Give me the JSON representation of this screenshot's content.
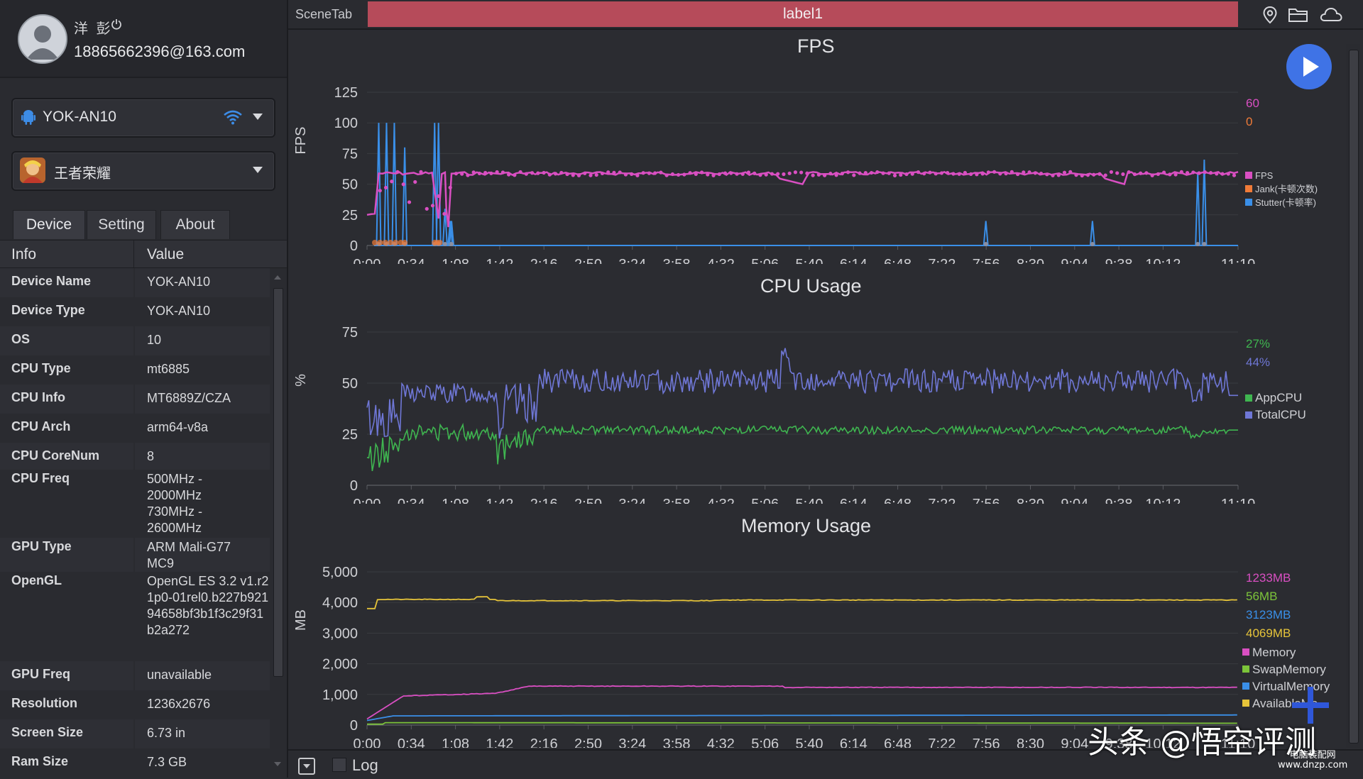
{
  "user": {
    "name": "洋 彭",
    "email": "18865662396@163.com"
  },
  "device_select": {
    "label": "YOK-AN10"
  },
  "app_select": {
    "label": "王者荣耀"
  },
  "tabs": [
    "Device",
    "Setting",
    "About"
  ],
  "info_table": {
    "headers": [
      "Info",
      "Value"
    ],
    "rows": [
      {
        "k": "Device Name",
        "v": "YOK-AN10"
      },
      {
        "k": "Device Type",
        "v": "YOK-AN10"
      },
      {
        "k": "OS",
        "v": "10"
      },
      {
        "k": "CPU Type",
        "v": "mt6885"
      },
      {
        "k": "CPU Info",
        "v": "MT6889Z/CZA"
      },
      {
        "k": "CPU Arch",
        "v": "arm64-v8a"
      },
      {
        "k": "CPU CoreNum",
        "v": "8"
      },
      {
        "k": "CPU Freq",
        "v": "500MHz - 2000MHz 730MHz - 2600MHz"
      },
      {
        "k": "GPU Type",
        "v": "ARM Mali-G77 MC9"
      },
      {
        "k": "OpenGL",
        "v": "OpenGL ES 3.2 v1.r21p0-01rel0.b227b92194658bf3b1f3c29f31b2a272"
      },
      {
        "k": "GPU Freq",
        "v": "unavailable"
      },
      {
        "k": "Resolution",
        "v": "1236x2676"
      },
      {
        "k": "Screen Size",
        "v": "6.73 in"
      },
      {
        "k": "Ram Size",
        "v": "7.3 GB"
      }
    ]
  },
  "topbar": {
    "scene_tab": "SceneTab",
    "label": "label1",
    "icons": [
      "location-pin-icon",
      "folder-icon",
      "cloud-icon"
    ]
  },
  "bottombar": {
    "log_label": "Log"
  },
  "watermark": {
    "text": "头条 @悟空评测",
    "site_line1": "电脑装配网",
    "site_line2": "www.dnzp.com"
  },
  "colors": {
    "fps": "#d94fc2",
    "jank": "#f07b38",
    "stutter": "#3a8fe8",
    "appcpu": "#3fb650",
    "totalcpu": "#6f77d6",
    "memory": "#d94fc2",
    "swap": "#7cc43a",
    "virtual": "#3a8fe8",
    "available": "#e6c43a",
    "slider": "#2aa6ec"
  },
  "chart_data": [
    {
      "type": "line",
      "title": "FPS",
      "ylabel": "FPS",
      "ylim": [
        0,
        125
      ],
      "yticks": [
        0,
        25,
        50,
        75,
        100,
        125
      ],
      "xticks": [
        "0:00",
        "0:34",
        "1:08",
        "1:42",
        "2:16",
        "2:50",
        "3:24",
        "3:58",
        "4:32",
        "5:06",
        "5:40",
        "6:14",
        "6:48",
        "7:22",
        "7:56",
        "8:30",
        "9:04",
        "9:38",
        "10:12",
        "11:10"
      ],
      "series": [
        {
          "name": "FPS",
          "current": "60"
        },
        {
          "name": "Jank(卡顿次数)",
          "current": "0"
        },
        {
          "name": "Stutter(卡顿率)"
        }
      ],
      "fps_points": [
        [
          0,
          25
        ],
        [
          12,
          26
        ],
        [
          18,
          60
        ],
        [
          30,
          58
        ],
        [
          40,
          60
        ],
        [
          50,
          58
        ],
        [
          60,
          60
        ],
        [
          90,
          60
        ],
        [
          100,
          60
        ],
        [
          110,
          22
        ],
        [
          115,
          60
        ],
        [
          120,
          59
        ],
        [
          122,
          30
        ],
        [
          125,
          15
        ],
        [
          130,
          60
        ],
        [
          150,
          60
        ],
        [
          200,
          60
        ],
        [
          300,
          59
        ],
        [
          400,
          60
        ],
        [
          500,
          60
        ],
        [
          600,
          59
        ],
        [
          670,
          50
        ],
        [
          680,
          60
        ],
        [
          800,
          60
        ],
        [
          900,
          59
        ],
        [
          1000,
          60
        ],
        [
          1100,
          60
        ],
        [
          1165,
          50
        ],
        [
          1170,
          60
        ],
        [
          1200,
          60
        ],
        [
          1340,
          60
        ]
      ],
      "stutter_spikes": [
        [
          18,
          100
        ],
        [
          30,
          100
        ],
        [
          42,
          100
        ],
        [
          58,
          80
        ],
        [
          104,
          100
        ],
        [
          110,
          100
        ],
        [
          120,
          30
        ],
        [
          128,
          20
        ],
        [
          130,
          20
        ],
        [
          952,
          20
        ],
        [
          1116,
          20
        ],
        [
          1278,
          60
        ],
        [
          1288,
          70
        ]
      ]
    },
    {
      "type": "line",
      "title": "CPU Usage",
      "ylabel": "%",
      "ylim": [
        0,
        75
      ],
      "yticks": [
        0,
        25,
        50,
        75
      ],
      "xticks": [
        "0:00",
        "0:34",
        "1:08",
        "1:42",
        "2:16",
        "2:50",
        "3:24",
        "3:58",
        "4:32",
        "5:06",
        "5:40",
        "6:14",
        "6:48",
        "7:22",
        "7:56",
        "8:30",
        "9:04",
        "9:38",
        "10:12",
        "11:10"
      ],
      "series": [
        {
          "name": "AppCPU",
          "current": "27%"
        },
        {
          "name": "TotalCPU",
          "current": "44%"
        }
      ]
    },
    {
      "type": "line",
      "title": "Memory Usage",
      "ylabel": "MB",
      "ylim": [
        0,
        5000
      ],
      "yticks": [
        "0",
        "1,000",
        "2,000",
        "3,000",
        "4,000",
        "5,000"
      ],
      "xticks": [
        "0:00",
        "0:34",
        "1:08",
        "1:42",
        "2:16",
        "2:50",
        "3:24",
        "3:58",
        "4:32",
        "5:06",
        "5:40",
        "6:14",
        "6:48",
        "7:22",
        "7:56",
        "8:30",
        "9:04",
        "9:38",
        "10:12",
        "11:10"
      ],
      "series": [
        {
          "name": "Memory",
          "current": "1233MB"
        },
        {
          "name": "SwapMemory",
          "current": "56MB"
        },
        {
          "name": "VirtualMemory",
          "current": "3123MB"
        },
        {
          "name": "AvailableMe...",
          "current": "4069MB"
        }
      ]
    }
  ]
}
